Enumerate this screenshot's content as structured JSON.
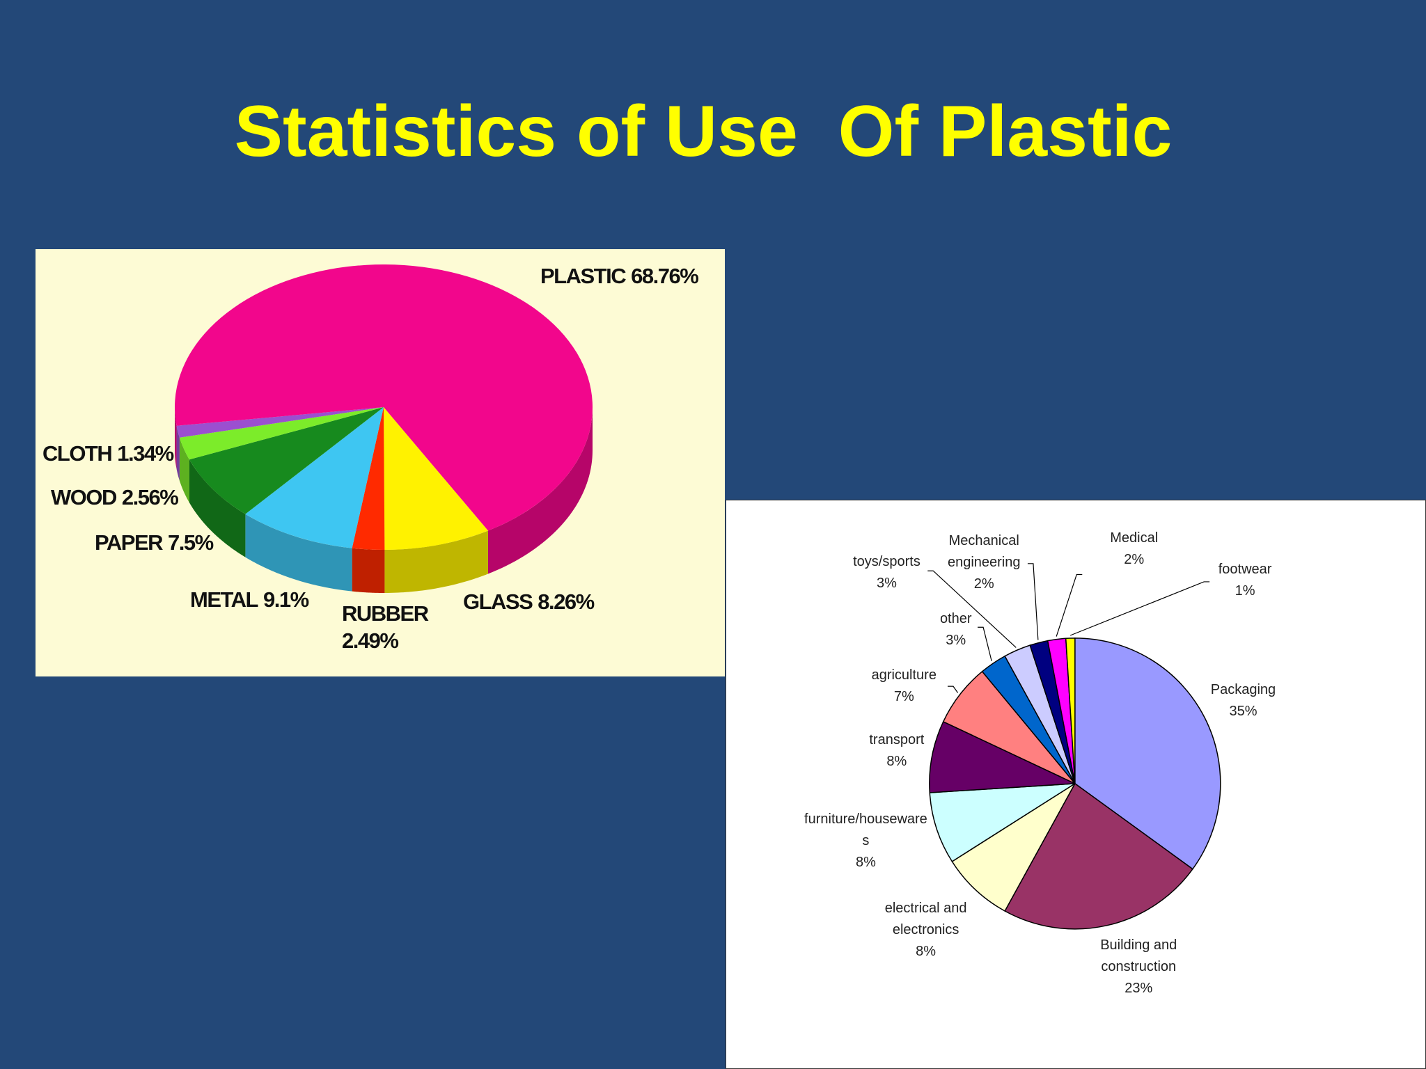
{
  "title": "Statistics of Use  Of Plastic",
  "chart_data": [
    {
      "type": "pie3d",
      "categories": [
        "GLASS",
        "RUBBER",
        "METAL",
        "PAPER",
        "WOOD",
        "CLOTH",
        "PLASTIC"
      ],
      "values": [
        8.26,
        2.49,
        9.1,
        7.5,
        2.56,
        1.34,
        68.76
      ],
      "value_labels": [
        "8.26%",
        "2.49%",
        "9.1%",
        "7.5%",
        "2.56%",
        "1.34%",
        "68.76%"
      ],
      "colors": [
        "#fff200",
        "#ff2a00",
        "#3ec6f2",
        "#178a1e",
        "#7cec2a",
        "#9b4fd0",
        "#f2068c"
      ]
    },
    {
      "type": "pie",
      "categories": [
        "Packaging",
        "Building and construction",
        "electrical and electronics",
        "furniture/housewares",
        "transport",
        "agriculture",
        "other",
        "toys/sports",
        "Mechanical engineering",
        "Medical",
        "footwear"
      ],
      "values": [
        35,
        23,
        8,
        8,
        8,
        7,
        3,
        3,
        2,
        2,
        1
      ],
      "value_labels": [
        "35%",
        "23%",
        "8%",
        "8%",
        "8%",
        "7%",
        "3%",
        "3%",
        "2%",
        "2%",
        "1%"
      ],
      "colors": [
        "#9999ff",
        "#993366",
        "#ffffcc",
        "#ccffff",
        "#660066",
        "#ff8080",
        "#0066cc",
        "#ccccff",
        "#000080",
        "#ff00ff",
        "#ffff00"
      ]
    }
  ]
}
